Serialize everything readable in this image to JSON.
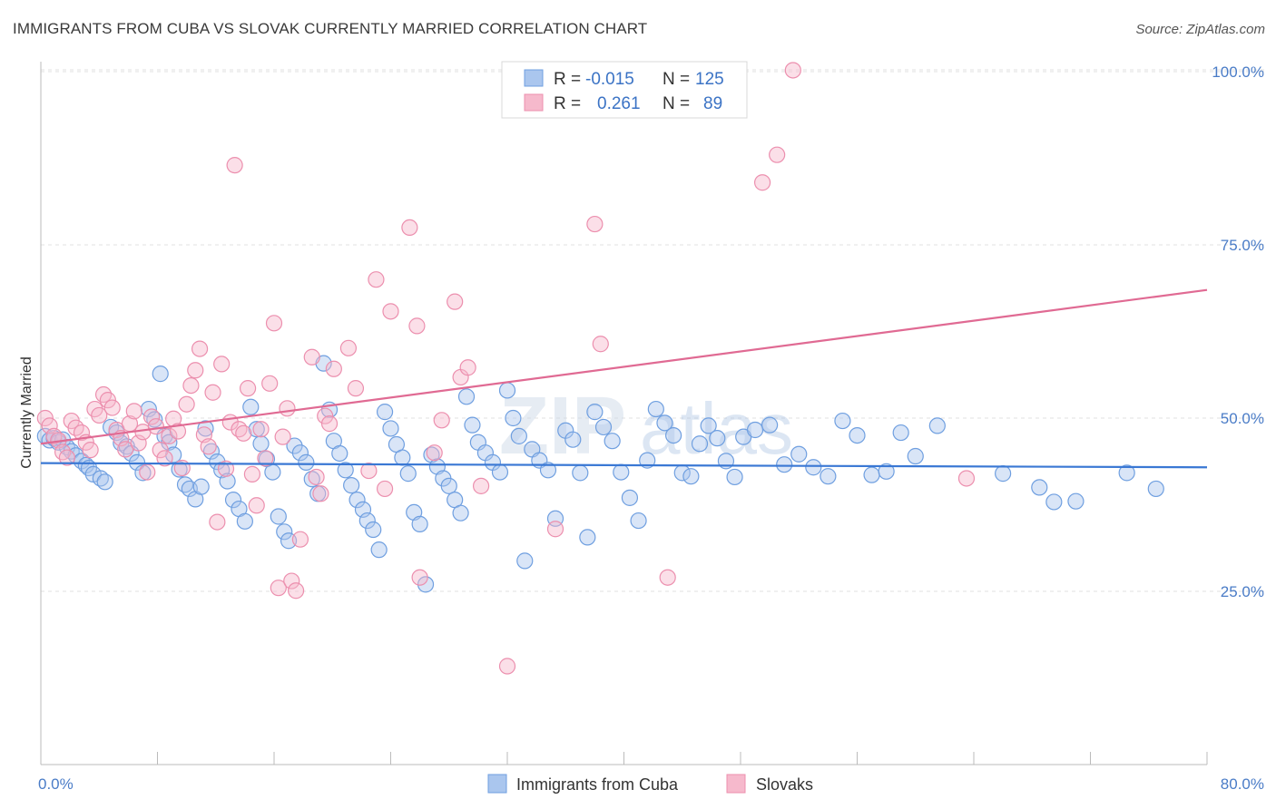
{
  "title": "IMMIGRANTS FROM CUBA VS SLOVAK CURRENTLY MARRIED CORRELATION CHART",
  "source": "Source: ZipAtlas.com",
  "watermark": {
    "zip": "ZIP",
    "atlas": "atlas"
  },
  "legend_top": {
    "rows": [
      {
        "r_label": "R =",
        "r_value": "-0.015",
        "n_label": "N =",
        "n_value": "125"
      },
      {
        "r_label": "R =",
        "r_value": "0.261",
        "n_label": "N =",
        "n_value": "89"
      }
    ]
  },
  "chart_data": {
    "type": "scatter",
    "title": "IMMIGRANTS FROM CUBA VS SLOVAK CURRENTLY MARRIED CORRELATION CHART",
    "xlabel": "",
    "ylabel": "Currently Married",
    "xlim": [
      0,
      80
    ],
    "ylim": [
      0,
      105
    ],
    "x_tick_labels": [
      "0.0%",
      "80.0%"
    ],
    "y_ticks": [
      25,
      50,
      75,
      100
    ],
    "y_tick_labels": [
      "25.0%",
      "50.0%",
      "75.0%",
      "100.0%"
    ],
    "grid": true,
    "legend_position": "top-center",
    "colors": {
      "cuba_fill": "#aac6ee",
      "cuba_stroke": "#6f9fe0",
      "cuba_line": "#3a78d4",
      "slovak_fill": "#f6b9cc",
      "slovak_stroke": "#ec8fae",
      "slovak_line": "#e06a93"
    },
    "series": [
      {
        "name": "Immigrants from Cuba",
        "r": -0.015,
        "n": 125,
        "trend": {
          "x": [
            0,
            80
          ],
          "y": [
            43.5,
            42.9
          ]
        },
        "points": [
          [
            0.3,
            47.4
          ],
          [
            0.6,
            46.8
          ],
          [
            0.9,
            47.1
          ],
          [
            1.2,
            46.5
          ],
          [
            1.5,
            46.9
          ],
          [
            1.8,
            45.8
          ],
          [
            2.1,
            45.2
          ],
          [
            2.4,
            44.6
          ],
          [
            2.8,
            43.8
          ],
          [
            3.1,
            43.2
          ],
          [
            3.3,
            42.8
          ],
          [
            3.6,
            41.9
          ],
          [
            4.1,
            41.3
          ],
          [
            4.4,
            40.8
          ],
          [
            4.8,
            48.7
          ],
          [
            5.2,
            47.9
          ],
          [
            5.5,
            46.4
          ],
          [
            5.9,
            45.9
          ],
          [
            6.2,
            44.9
          ],
          [
            6.6,
            43.6
          ],
          [
            7.0,
            42.1
          ],
          [
            7.4,
            51.3
          ],
          [
            7.8,
            49.8
          ],
          [
            8.2,
            56.4
          ],
          [
            8.5,
            47.4
          ],
          [
            8.8,
            46.5
          ],
          [
            9.1,
            44.7
          ],
          [
            9.5,
            42.6
          ],
          [
            9.9,
            40.4
          ],
          [
            10.2,
            39.8
          ],
          [
            10.6,
            38.3
          ],
          [
            11.0,
            40.1
          ],
          [
            11.3,
            48.5
          ],
          [
            11.7,
            45.2
          ],
          [
            12.1,
            43.7
          ],
          [
            12.4,
            42.5
          ],
          [
            12.8,
            40.9
          ],
          [
            13.2,
            38.2
          ],
          [
            13.6,
            36.9
          ],
          [
            14.0,
            35.1
          ],
          [
            14.4,
            51.6
          ],
          [
            14.8,
            48.4
          ],
          [
            15.1,
            46.3
          ],
          [
            15.5,
            44.1
          ],
          [
            15.9,
            42.2
          ],
          [
            16.3,
            35.8
          ],
          [
            16.7,
            33.6
          ],
          [
            17.0,
            32.3
          ],
          [
            17.4,
            46.0
          ],
          [
            17.8,
            45.0
          ],
          [
            18.2,
            43.6
          ],
          [
            18.6,
            41.2
          ],
          [
            19.0,
            39.1
          ],
          [
            19.4,
            57.9
          ],
          [
            19.8,
            51.2
          ],
          [
            20.1,
            46.7
          ],
          [
            20.5,
            44.9
          ],
          [
            20.9,
            42.5
          ],
          [
            21.3,
            40.3
          ],
          [
            21.7,
            38.2
          ],
          [
            22.1,
            36.8
          ],
          [
            22.4,
            35.2
          ],
          [
            22.8,
            33.9
          ],
          [
            23.2,
            31.0
          ],
          [
            23.6,
            50.9
          ],
          [
            24.0,
            48.5
          ],
          [
            24.4,
            46.2
          ],
          [
            24.8,
            44.3
          ],
          [
            25.2,
            42.0
          ],
          [
            25.6,
            36.4
          ],
          [
            26.0,
            34.7
          ],
          [
            26.4,
            26.0
          ],
          [
            26.8,
            44.7
          ],
          [
            27.2,
            43.0
          ],
          [
            27.6,
            41.3
          ],
          [
            28.0,
            40.2
          ],
          [
            28.4,
            38.2
          ],
          [
            28.8,
            36.3
          ],
          [
            29.2,
            53.1
          ],
          [
            29.6,
            49.0
          ],
          [
            30.0,
            46.5
          ],
          [
            30.5,
            45.0
          ],
          [
            31.0,
            43.6
          ],
          [
            31.5,
            42.2
          ],
          [
            32.0,
            54.0
          ],
          [
            32.4,
            50.0
          ],
          [
            32.8,
            47.4
          ],
          [
            33.2,
            29.4
          ],
          [
            33.7,
            45.5
          ],
          [
            34.2,
            43.9
          ],
          [
            34.8,
            42.5
          ],
          [
            35.3,
            35.5
          ],
          [
            36.0,
            48.2
          ],
          [
            36.5,
            46.9
          ],
          [
            37.0,
            42.1
          ],
          [
            37.5,
            32.8
          ],
          [
            38.0,
            50.9
          ],
          [
            38.6,
            48.7
          ],
          [
            39.2,
            46.7
          ],
          [
            39.8,
            42.2
          ],
          [
            40.4,
            38.5
          ],
          [
            41.0,
            35.2
          ],
          [
            41.6,
            43.9
          ],
          [
            42.2,
            51.3
          ],
          [
            42.8,
            49.3
          ],
          [
            43.4,
            47.5
          ],
          [
            44.0,
            42.1
          ],
          [
            44.6,
            41.6
          ],
          [
            45.2,
            46.3
          ],
          [
            45.8,
            48.9
          ],
          [
            46.4,
            47.1
          ],
          [
            47.0,
            43.8
          ],
          [
            47.6,
            41.5
          ],
          [
            48.2,
            47.3
          ],
          [
            49.0,
            48.3
          ],
          [
            50.0,
            49.0
          ],
          [
            51.0,
            43.3
          ],
          [
            52.0,
            44.8
          ],
          [
            53.0,
            42.9
          ],
          [
            54.0,
            41.6
          ],
          [
            55.0,
            49.6
          ],
          [
            56.0,
            47.5
          ],
          [
            57.0,
            41.8
          ],
          [
            58.0,
            42.3
          ],
          [
            59.0,
            47.9
          ],
          [
            60.0,
            44.5
          ],
          [
            61.5,
            48.9
          ],
          [
            66.0,
            42.0
          ],
          [
            68.5,
            40.0
          ],
          [
            69.5,
            37.9
          ],
          [
            71.0,
            38.0
          ],
          [
            74.5,
            42.1
          ],
          [
            76.5,
            39.8
          ]
        ]
      },
      {
        "name": "Slovaks",
        "r": 0.261,
        "n": 89,
        "trend": {
          "x": [
            0,
            80
          ],
          "y": [
            46.3,
            68.5
          ]
        },
        "points": [
          [
            0.3,
            50.0
          ],
          [
            0.6,
            48.9
          ],
          [
            0.9,
            47.4
          ],
          [
            1.2,
            46.8
          ],
          [
            1.5,
            45.1
          ],
          [
            1.8,
            44.3
          ],
          [
            2.1,
            49.6
          ],
          [
            2.4,
            48.6
          ],
          [
            2.8,
            47.9
          ],
          [
            3.1,
            46.5
          ],
          [
            3.4,
            45.4
          ],
          [
            3.7,
            51.3
          ],
          [
            4.0,
            50.4
          ],
          [
            4.3,
            53.4
          ],
          [
            4.6,
            52.6
          ],
          [
            4.9,
            51.5
          ],
          [
            5.2,
            48.3
          ],
          [
            5.5,
            47.1
          ],
          [
            5.8,
            45.5
          ],
          [
            6.1,
            49.2
          ],
          [
            6.4,
            51.0
          ],
          [
            6.7,
            46.4
          ],
          [
            7.0,
            48.0
          ],
          [
            7.3,
            42.2
          ],
          [
            7.6,
            50.2
          ],
          [
            7.9,
            48.8
          ],
          [
            8.2,
            45.4
          ],
          [
            8.5,
            44.2
          ],
          [
            8.8,
            47.4
          ],
          [
            9.1,
            49.9
          ],
          [
            9.4,
            48.1
          ],
          [
            9.7,
            42.8
          ],
          [
            10.0,
            52.0
          ],
          [
            10.3,
            54.7
          ],
          [
            10.6,
            56.9
          ],
          [
            10.9,
            60.0
          ],
          [
            11.2,
            47.6
          ],
          [
            11.5,
            45.9
          ],
          [
            11.8,
            53.7
          ],
          [
            12.1,
            35.0
          ],
          [
            12.4,
            57.8
          ],
          [
            12.7,
            42.7
          ],
          [
            13.0,
            49.4
          ],
          [
            13.3,
            86.5
          ],
          [
            13.6,
            48.4
          ],
          [
            13.9,
            47.8
          ],
          [
            14.2,
            54.3
          ],
          [
            14.5,
            41.9
          ],
          [
            14.8,
            37.4
          ],
          [
            15.1,
            48.4
          ],
          [
            15.4,
            44.2
          ],
          [
            15.7,
            55.0
          ],
          [
            16.0,
            63.7
          ],
          [
            16.3,
            25.5
          ],
          [
            16.6,
            47.3
          ],
          [
            16.9,
            51.4
          ],
          [
            17.2,
            26.5
          ],
          [
            17.5,
            25.1
          ],
          [
            17.8,
            32.5
          ],
          [
            18.6,
            58.8
          ],
          [
            18.9,
            41.5
          ],
          [
            19.2,
            39.1
          ],
          [
            19.5,
            50.3
          ],
          [
            19.8,
            49.2
          ],
          [
            20.1,
            57.1
          ],
          [
            21.1,
            60.1
          ],
          [
            21.6,
            54.3
          ],
          [
            22.5,
            42.4
          ],
          [
            23.0,
            70.0
          ],
          [
            23.6,
            39.8
          ],
          [
            24.0,
            65.4
          ],
          [
            25.3,
            77.5
          ],
          [
            25.8,
            63.3
          ],
          [
            26.0,
            27.0
          ],
          [
            27.0,
            45.0
          ],
          [
            27.5,
            49.7
          ],
          [
            28.4,
            66.8
          ],
          [
            28.8,
            55.9
          ],
          [
            29.3,
            57.3
          ],
          [
            30.2,
            40.2
          ],
          [
            32.0,
            14.2
          ],
          [
            35.3,
            34.0
          ],
          [
            38.0,
            78.0
          ],
          [
            38.4,
            60.7
          ],
          [
            43.0,
            27.0
          ],
          [
            49.5,
            84.0
          ],
          [
            50.5,
            88.0
          ],
          [
            51.6,
            100.2
          ],
          [
            63.5,
            41.3
          ]
        ]
      }
    ]
  },
  "legend_bottom": {
    "items": [
      "Immigrants from Cuba",
      "Slovaks"
    ]
  }
}
